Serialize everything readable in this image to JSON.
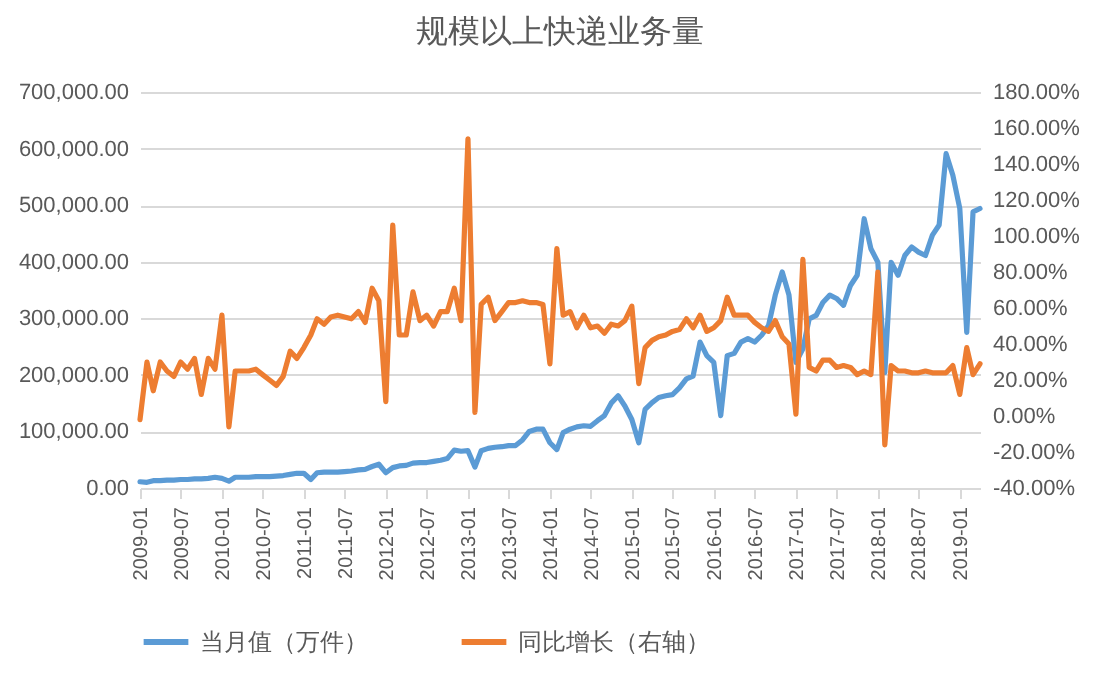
{
  "chart_data": {
    "type": "line",
    "title": "规模以上快递业务量",
    "x": [
      "2009-01",
      "2009-02",
      "2009-03",
      "2009-04",
      "2009-05",
      "2009-06",
      "2009-07",
      "2009-08",
      "2009-09",
      "2009-10",
      "2009-11",
      "2009-12",
      "2010-01",
      "2010-02",
      "2010-03",
      "2010-04",
      "2010-05",
      "2010-06",
      "2010-07",
      "2010-08",
      "2010-09",
      "2010-10",
      "2010-11",
      "2010-12",
      "2011-01",
      "2011-02",
      "2011-03",
      "2011-04",
      "2011-05",
      "2011-06",
      "2011-07",
      "2011-08",
      "2011-09",
      "2011-10",
      "2011-11",
      "2011-12",
      "2012-01",
      "2012-02",
      "2012-03",
      "2012-04",
      "2012-05",
      "2012-06",
      "2012-07",
      "2012-08",
      "2012-09",
      "2012-10",
      "2012-11",
      "2012-12",
      "2013-01",
      "2013-02",
      "2013-03",
      "2013-04",
      "2013-05",
      "2013-06",
      "2013-07",
      "2013-08",
      "2013-09",
      "2013-10",
      "2013-11",
      "2013-12",
      "2014-01",
      "2014-02",
      "2014-03",
      "2014-04",
      "2014-05",
      "2014-06",
      "2014-07",
      "2014-08",
      "2014-09",
      "2014-10",
      "2014-11",
      "2014-12",
      "2015-01",
      "2015-02",
      "2015-03",
      "2015-04",
      "2015-05",
      "2015-06",
      "2015-07",
      "2015-08",
      "2015-09",
      "2015-10",
      "2015-11",
      "2015-12",
      "2016-01",
      "2016-02",
      "2016-03",
      "2016-04",
      "2016-05",
      "2016-06",
      "2016-07",
      "2016-08",
      "2016-09",
      "2016-10",
      "2016-11",
      "2016-12",
      "2017-01",
      "2017-02",
      "2017-03",
      "2017-04",
      "2017-05",
      "2017-06",
      "2017-07",
      "2017-08",
      "2017-09",
      "2017-10",
      "2017-11",
      "2017-12",
      "2018-01",
      "2018-02",
      "2018-03",
      "2018-04",
      "2018-05",
      "2018-06",
      "2018-07",
      "2018-08",
      "2018-09",
      "2018-10",
      "2018-11",
      "2018-12",
      "2019-01",
      "2019-02",
      "2019-03",
      "2019-04"
    ],
    "xlim": [
      "2009-01",
      "2019-04"
    ],
    "xticks": [
      "2009-01",
      "2009-07",
      "2010-01",
      "2010-07",
      "2011-01",
      "2011-07",
      "2012-01",
      "2012-07",
      "2013-01",
      "2013-07",
      "2014-01",
      "2014-07",
      "2015-01",
      "2015-07",
      "2016-01",
      "2016-07",
      "2017-01",
      "2017-07",
      "2018-01",
      "2018-07",
      "2019-01"
    ],
    "series": [
      {
        "name": "当月值（万件）",
        "color": "#5b9bd5",
        "values": [
          11000,
          10000,
          13000,
          13000,
          14000,
          14000,
          15000,
          15000,
          16000,
          16000,
          17000,
          19000,
          17000,
          12000,
          19000,
          19000,
          19000,
          20000,
          20000,
          20000,
          21000,
          22000,
          24000,
          26000,
          26000,
          15000,
          27000,
          28000,
          28000,
          28000,
          29000,
          30000,
          32000,
          33000,
          38000,
          42000,
          27000,
          36000,
          39000,
          40000,
          44000,
          45000,
          45000,
          47000,
          49000,
          52000,
          67000,
          65000,
          66000,
          37000,
          66000,
          70000,
          72000,
          73000,
          75000,
          75000,
          85000,
          100000,
          104000,
          104000,
          80000,
          68000,
          98000,
          104000,
          108000,
          110000,
          109000,
          119000,
          128000,
          150000,
          163000,
          145000,
          121000,
          80000,
          139000,
          151000,
          160000,
          163000,
          165000,
          177000,
          193000,
          198000,
          258000,
          234000,
          222000,
          128000,
          234000,
          238000,
          258000,
          264000,
          258000,
          270000,
          287000,
          341000,
          382000,
          341000,
          222000,
          246000,
          299000,
          305000,
          328000,
          341000,
          335000,
          323000,
          358000,
          376000,
          476000,
          423000,
          399000,
          204000,
          399000,
          376000,
          411000,
          426000,
          417000,
          411000,
          447000,
          465000,
          591000,
          553000,
          494000,
          275000,
          488000,
          494000
        ]
      },
      {
        "name": "同比增长（右轴）",
        "color": "#ed7d31",
        "axis": "y2",
        "values": [
          -2,
          30,
          14,
          30,
          25,
          22,
          30,
          26,
          32,
          12,
          32,
          26,
          56,
          -6,
          25,
          25,
          25,
          26,
          23,
          20,
          17,
          22,
          36,
          32,
          38,
          45,
          54,
          51,
          55,
          56,
          55,
          54,
          58,
          52,
          71,
          64,
          8,
          106,
          45,
          45,
          69,
          53,
          56,
          50,
          58,
          58,
          71,
          53,
          154,
          2,
          62,
          66,
          53,
          58,
          63,
          63,
          64,
          63,
          63,
          62,
          29,
          93,
          56,
          58,
          49,
          56,
          49,
          50,
          46,
          51,
          50,
          53,
          61,
          18,
          38,
          42,
          44,
          45,
          47,
          48,
          54,
          49,
          56,
          47,
          49,
          53,
          66,
          56,
          56,
          56,
          52,
          49,
          47,
          53,
          44,
          40,
          1,
          87,
          27,
          25,
          31,
          31,
          27,
          28,
          27,
          23,
          25,
          23,
          80,
          -16,
          28,
          25,
          25,
          24,
          24,
          25,
          24,
          24,
          24,
          28,
          12,
          38,
          23,
          29
        ]
      }
    ],
    "ylim": [
      0,
      700000
    ],
    "yticks": [
      {
        "value": 0,
        "label": "0.00"
      },
      {
        "value": 100000,
        "label": "100,000.00"
      },
      {
        "value": 200000,
        "label": "200,000.00"
      },
      {
        "value": 300000,
        "label": "300,000.00"
      },
      {
        "value": 400000,
        "label": "400,000.00"
      },
      {
        "value": 500000,
        "label": "500,000.00"
      },
      {
        "value": 600000,
        "label": "600,000.00"
      },
      {
        "value": 700000,
        "label": "700,000.00"
      }
    ],
    "y2lim": [
      -40,
      180
    ],
    "y2ticks": [
      {
        "value": -40,
        "label": "-40.00%"
      },
      {
        "value": -20,
        "label": "-20.00%"
      },
      {
        "value": 0,
        "label": "0.00%"
      },
      {
        "value": 20,
        "label": "20.00%"
      },
      {
        "value": 40,
        "label": "40.00%"
      },
      {
        "value": 60,
        "label": "60.00%"
      },
      {
        "value": 80,
        "label": "80.00%"
      },
      {
        "value": 100,
        "label": "100.00%"
      },
      {
        "value": 120,
        "label": "120.00%"
      },
      {
        "value": 140,
        "label": "140.00%"
      },
      {
        "value": 160,
        "label": "160.00%"
      },
      {
        "value": 180,
        "label": "180.00%"
      }
    ],
    "grid": "y",
    "legend": "bottom",
    "marker": "none",
    "line_style": "solid"
  }
}
